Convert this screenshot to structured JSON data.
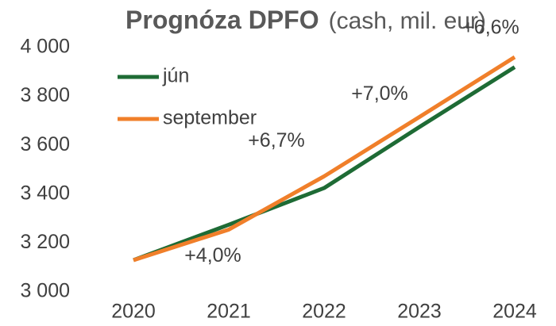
{
  "chart_data": {
    "type": "line",
    "title": "Prognóza DPFO",
    "subtitle": "(cash, mil. eur)",
    "categories": [
      "2020",
      "2021",
      "2022",
      "2023",
      "2024"
    ],
    "series": [
      {
        "name": "jún",
        "color": "#1e6b35",
        "values": [
          3130,
          3275,
          3425,
          3675,
          3920
        ]
      },
      {
        "name": "september",
        "color": "#f07f2a",
        "values": [
          3130,
          3255,
          3473,
          3716,
          3961
        ]
      }
    ],
    "annotations": [
      "+4,0%",
      "+6,7%",
      "+7,0%",
      "+6,6%"
    ],
    "ylim": [
      3000,
      4000
    ],
    "yticks": [
      {
        "value": 3000,
        "label": "3 000"
      },
      {
        "value": 3200,
        "label": "3 200"
      },
      {
        "value": 3400,
        "label": "3 400"
      },
      {
        "value": 3600,
        "label": "3 600"
      },
      {
        "value": 3800,
        "label": "3 800"
      },
      {
        "value": 4000,
        "label": "4 000"
      }
    ],
    "grid": false,
    "legend": "upper left"
  }
}
